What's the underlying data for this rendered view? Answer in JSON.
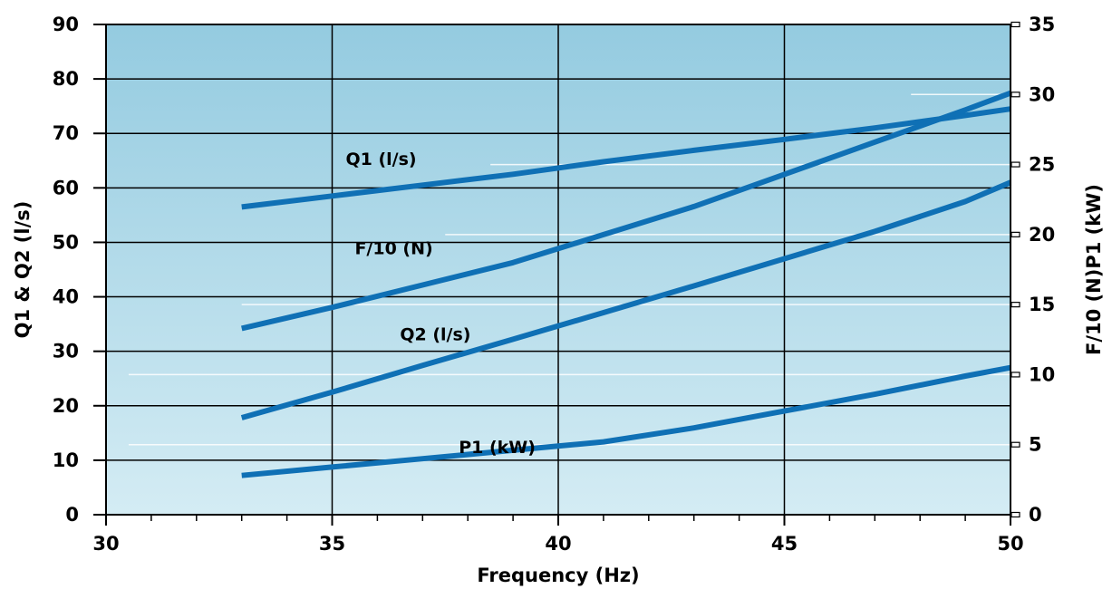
{
  "chart_data": {
    "type": "line",
    "xlabel": "Frequency  (Hz)",
    "ylabel_left": "Q1 & Q2  (l/s)",
    "ylabel_right": "F/10 (N)P1  (kW)",
    "x_range": [
      30,
      50
    ],
    "x_ticks": [
      "30",
      "35",
      "40",
      "45",
      "50"
    ],
    "y_left_range": [
      0,
      90
    ],
    "y_left_ticks": [
      "0",
      "10",
      "20",
      "30",
      "40",
      "50",
      "60",
      "70",
      "80",
      "90"
    ],
    "y_right_range": [
      0,
      35
    ],
    "y_right_ticks": [
      "0",
      "5",
      "10",
      "15",
      "20",
      "25",
      "30",
      "35"
    ],
    "grid": true,
    "colors": {
      "line": "#0f70b5",
      "plot_top": "#94cbe0",
      "plot_bottom": "#d4ecf4",
      "grid": "#000000"
    },
    "series": [
      {
        "name": "Q1 (l/s)",
        "axis": "left",
        "x": [
          33,
          35,
          37,
          39,
          41,
          43,
          45,
          47,
          49,
          50
        ],
        "y": [
          56.5,
          58.5,
          60.5,
          62.5,
          64.8,
          66.9,
          68.9,
          71,
          73.3,
          74.5
        ]
      },
      {
        "name": "F/10 (N)",
        "axis": "right",
        "x": [
          33,
          35,
          37,
          39,
          41,
          43,
          45,
          47,
          49,
          50
        ],
        "y": [
          13.3,
          14.8,
          16.4,
          18,
          20,
          22,
          24.3,
          26.6,
          28.9,
          30.1
        ]
      },
      {
        "name": "Q2 (l/s)",
        "axis": "left",
        "x": [
          33,
          35,
          37,
          39,
          41,
          43,
          45,
          47,
          49,
          50
        ],
        "y": [
          17.8,
          22.5,
          27.4,
          32.2,
          37.1,
          42,
          47,
          52,
          57.5,
          61
        ]
      },
      {
        "name": "P1 (kW)",
        "axis": "right",
        "x": [
          33,
          35,
          37,
          39,
          41,
          43,
          45,
          47,
          49,
          50
        ],
        "y": [
          2.8,
          3.4,
          4,
          4.6,
          5.2,
          6.2,
          7.4,
          8.6,
          9.9,
          10.5
        ]
      }
    ]
  }
}
